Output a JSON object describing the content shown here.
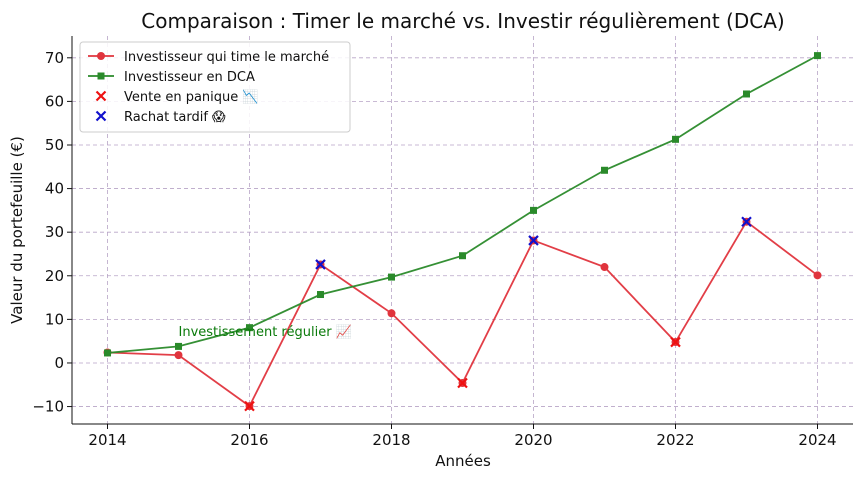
{
  "chart_data": {
    "type": "line",
    "title": "Comparaison : Timer le marché vs. Investir régulièrement (DCA)",
    "xlabel": "Années",
    "ylabel": "Valeur du portefeuille (€)",
    "xlim": [
      2013.5,
      2024.5
    ],
    "ylim": [
      -14,
      75
    ],
    "xticks": [
      2014,
      2016,
      2018,
      2020,
      2022,
      2024
    ],
    "yticks": [
      -10,
      0,
      10,
      20,
      30,
      40,
      50,
      60,
      70
    ],
    "ytick_labels": [
      "−10",
      "0",
      "10",
      "20",
      "30",
      "40",
      "50",
      "60",
      "70"
    ],
    "grid": true,
    "legend_position": "top-left",
    "x": [
      2014,
      2015,
      2016,
      2017,
      2018,
      2019,
      2020,
      2021,
      2022,
      2023,
      2024
    ],
    "series": [
      {
        "name": "Investisseur qui time le marché",
        "color": "#e0343d",
        "marker": "circle",
        "values": [
          2.4,
          1.8,
          -9.9,
          22.6,
          11.4,
          -4.6,
          28.1,
          22.0,
          4.8,
          32.4,
          20.1
        ]
      },
      {
        "name": "Investisseur en DCA",
        "color": "#2a8a2a",
        "marker": "square",
        "values": [
          2.3,
          3.8,
          8.1,
          15.7,
          19.7,
          24.6,
          35.0,
          44.2,
          51.3,
          61.7,
          70.5
        ]
      }
    ],
    "events": [
      {
        "name": "Vente en panique 📉",
        "color": "#ee1111",
        "marker": "x",
        "points": [
          {
            "x": 2016,
            "y": -9.9
          },
          {
            "x": 2019,
            "y": -4.6
          },
          {
            "x": 2022,
            "y": 4.8
          }
        ]
      },
      {
        "name": "Rachat tardif 😱",
        "color": "#1111cc",
        "marker": "x",
        "points": [
          {
            "x": 2017,
            "y": 22.6
          },
          {
            "x": 2020,
            "y": 28.1
          },
          {
            "x": 2023,
            "y": 32.4
          }
        ]
      }
    ],
    "annotations": [
      {
        "text": "Investissement régulier 📈",
        "x": 2015.0,
        "y": 6.2,
        "color": "#0a7a0a"
      }
    ]
  }
}
